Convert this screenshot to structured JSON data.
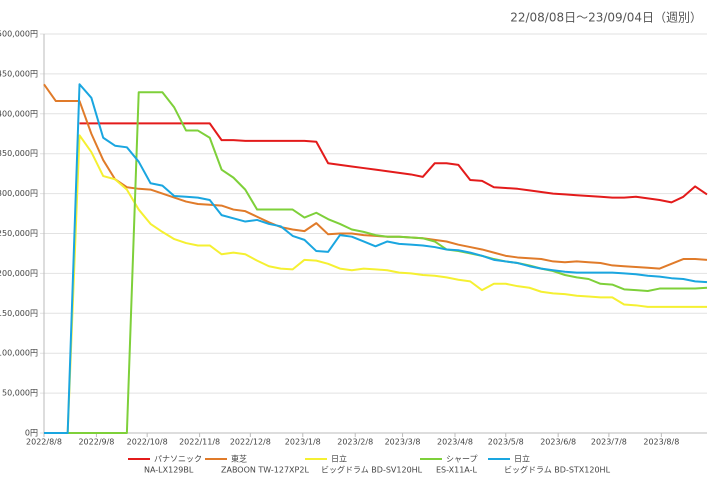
{
  "chart_data": {
    "type": "line",
    "title": "22/08/08日〜23/09/04日（週別）",
    "x": [
      "2022/8/8",
      "2022/8/15",
      "2022/8/22",
      "2022/8/29",
      "2022/9/5",
      "2022/9/12",
      "2022/9/19",
      "2022/9/26",
      "2022/10/3",
      "2022/10/10",
      "2022/10/17",
      "2022/10/24",
      "2022/10/31",
      "2022/11/7",
      "2022/11/14",
      "2022/11/21",
      "2022/11/28",
      "2022/12/5",
      "2022/12/12",
      "2022/12/19",
      "2022/12/26",
      "2023/1/2",
      "2023/1/9",
      "2023/1/16",
      "2023/1/23",
      "2023/1/30",
      "2023/2/6",
      "2023/2/13",
      "2023/2/20",
      "2023/2/27",
      "2023/3/6",
      "2023/3/13",
      "2023/3/20",
      "2023/3/27",
      "2023/4/3",
      "2023/4/10",
      "2023/4/17",
      "2023/4/24",
      "2023/5/1",
      "2023/5/8",
      "2023/5/15",
      "2023/5/22",
      "2023/5/29",
      "2023/6/5",
      "2023/6/12",
      "2023/6/19",
      "2023/6/26",
      "2023/7/3",
      "2023/7/10",
      "2023/7/17",
      "2023/7/24",
      "2023/7/31",
      "2023/8/7",
      "2023/8/14",
      "2023/8/21",
      "2023/8/28",
      "2023/9/4"
    ],
    "xlim": [
      "2022/8/8",
      "2023/9/4"
    ],
    "xticks": [
      "2022/8/8",
      "2022/9/8",
      "2022/10/8",
      "2022/11/8",
      "2022/12/8",
      "2023/1/8",
      "2023/2/8",
      "2023/3/8",
      "2023/4/8",
      "2023/5/8",
      "2023/6/8",
      "2023/7/8",
      "2023/8/8"
    ],
    "ylim": [
      0,
      500000
    ],
    "yticks": [
      {
        "value": 0,
        "label": "0円"
      },
      {
        "value": 50000,
        "label": "50,000円"
      },
      {
        "value": 100000,
        "label": "100,000円"
      },
      {
        "value": 150000,
        "label": "150,000円"
      },
      {
        "value": 200000,
        "label": "200,000円"
      },
      {
        "value": 250000,
        "label": "250,000円"
      },
      {
        "value": 300000,
        "label": "300,000円"
      },
      {
        "value": 350000,
        "label": "350,000円"
      },
      {
        "value": 400000,
        "label": "400,000円"
      },
      {
        "value": 450000,
        "label": "450,000円"
      },
      {
        "value": 500000,
        "label": "500,000円"
      }
    ],
    "grid": true,
    "legend": "bottom",
    "series": [
      {
        "name": "パナソニック",
        "model": "NA-LX129BL",
        "color": "#e31b1b",
        "values": [
          null,
          null,
          null,
          388000,
          388000,
          388000,
          388000,
          388000,
          388000,
          388000,
          388000,
          388000,
          388000,
          388000,
          388000,
          367000,
          367000,
          366000,
          366000,
          366000,
          366000,
          366000,
          366000,
          365000,
          338000,
          336000,
          334000,
          332000,
          330000,
          328000,
          326000,
          324000,
          321000,
          338000,
          338000,
          336000,
          317000,
          316000,
          308000,
          307000,
          306000,
          304000,
          302000,
          300000,
          299000,
          298000,
          297000,
          296000,
          295000,
          295000,
          296000,
          294000,
          292000,
          289000,
          296000,
          309000,
          299000
        ]
      },
      {
        "name": "東芝",
        "model": "ZABOON TW-127XP2L",
        "color": "#e07b2a",
        "values": [
          437000,
          416000,
          416000,
          416000,
          375000,
          342000,
          318000,
          308000,
          306000,
          305000,
          300000,
          295000,
          290000,
          287000,
          286000,
          285000,
          280000,
          278000,
          271000,
          264000,
          258000,
          255000,
          253000,
          263000,
          249000,
          250000,
          250000,
          248000,
          247000,
          246000,
          246000,
          245000,
          244000,
          242000,
          240000,
          236000,
          233000,
          230000,
          226000,
          222000,
          220000,
          219000,
          218000,
          215000,
          214000,
          215000,
          214000,
          213000,
          210000,
          209000,
          208000,
          207000,
          206000,
          212000,
          218000,
          218000,
          217000
        ]
      },
      {
        "name": "日立",
        "model": "ビッグドラム BD-SV120HL",
        "color": "#f5f032",
        "values": [
          0,
          0,
          0,
          373000,
          352000,
          322000,
          318000,
          305000,
          280000,
          262000,
          252000,
          243000,
          238000,
          235000,
          235000,
          224000,
          226000,
          224000,
          216000,
          209000,
          206000,
          205000,
          217000,
          216000,
          212000,
          206000,
          204000,
          206000,
          205000,
          204000,
          201000,
          200000,
          198000,
          197000,
          195000,
          192000,
          190000,
          179000,
          187000,
          187000,
          184000,
          182000,
          177000,
          175000,
          174000,
          172000,
          171000,
          170000,
          170000,
          161000,
          160000,
          158000,
          158000,
          158000,
          158000,
          158000,
          158000
        ]
      },
      {
        "name": "シャープ",
        "model": "ES-X11A-L",
        "color": "#7ed03a",
        "values": [
          0,
          0,
          0,
          0,
          0,
          0,
          0,
          0,
          427000,
          427000,
          427000,
          408000,
          379000,
          379000,
          370000,
          330000,
          320000,
          305000,
          280000,
          280000,
          280000,
          280000,
          270000,
          276000,
          268000,
          262000,
          255000,
          252000,
          248000,
          246000,
          246000,
          245000,
          244000,
          240000,
          230000,
          228000,
          225000,
          222000,
          218000,
          215000,
          213000,
          210000,
          206000,
          203000,
          198000,
          195000,
          193000,
          187000,
          186000,
          180000,
          179000,
          178000,
          181000,
          181000,
          181000,
          181000,
          182000
        ]
      },
      {
        "name": "日立",
        "model": "ビッグドラム BD-STX120HL",
        "color": "#1aa6e0",
        "values": [
          0,
          0,
          0,
          437000,
          420000,
          370000,
          360000,
          358000,
          340000,
          313000,
          310000,
          297000,
          296000,
          295000,
          292000,
          273000,
          269000,
          265000,
          267000,
          262000,
          259000,
          247000,
          242000,
          228000,
          227000,
          248000,
          246000,
          240000,
          234000,
          240000,
          237000,
          236000,
          235000,
          233000,
          230000,
          229000,
          226000,
          222000,
          217000,
          215000,
          213000,
          209000,
          206000,
          204000,
          202000,
          201000,
          201000,
          201000,
          201000,
          200000,
          199000,
          197000,
          196000,
          194000,
          193000,
          190000,
          189000
        ]
      }
    ]
  }
}
